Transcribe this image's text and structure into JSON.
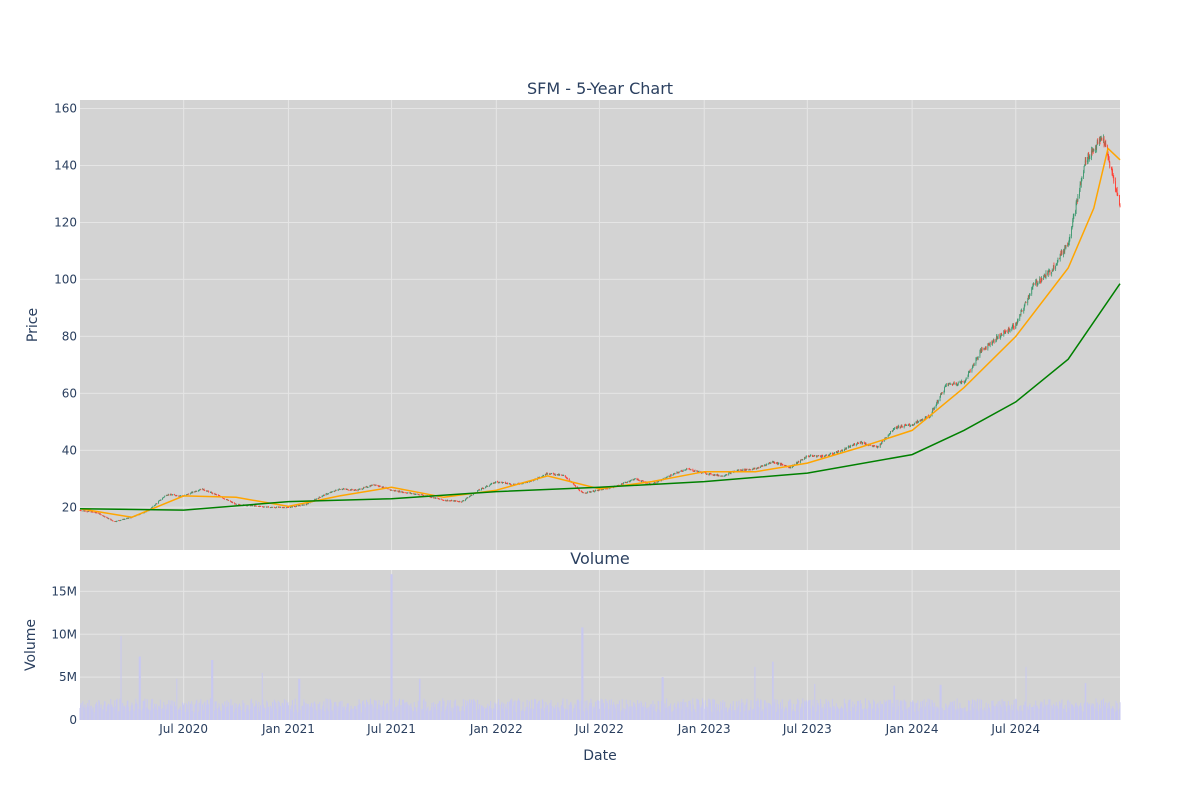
{
  "chart_data": [
    {
      "type": "candlestick",
      "title": "SFM - 5-Year Chart",
      "xlabel": "",
      "ylabel": "Price",
      "ylim": [
        5,
        163
      ],
      "xlim": [
        "2020-01-01",
        "2024-12-31"
      ],
      "x_ticks": [
        "Jul 2020",
        "Jan 2021",
        "Jul 2021",
        "Jan 2022",
        "Jul 2022",
        "Jan 2023",
        "Jul 2023",
        "Jan 2024",
        "Jul 2024"
      ],
      "y_ticks": [
        20,
        40,
        60,
        80,
        100,
        120,
        140,
        160
      ],
      "grid": true,
      "colors": {
        "up": "#3d9970",
        "down": "#ff4136",
        "ma_short": "#ffa500",
        "ma_long": "#008000",
        "plot_bg": "#d3d3d3",
        "grid": "#e5e5e5"
      },
      "series": [
        {
          "kind": "close_approx",
          "points": [
            [
              "2020-01-01",
              19
            ],
            [
              "2020-02-01",
              18
            ],
            [
              "2020-03-01",
              15
            ],
            [
              "2020-04-01",
              16.5
            ],
            [
              "2020-05-01",
              19
            ],
            [
              "2020-06-01",
              24.5
            ],
            [
              "2020-07-01",
              24
            ],
            [
              "2020-08-01",
              26.5
            ],
            [
              "2020-09-01",
              24
            ],
            [
              "2020-10-01",
              21
            ],
            [
              "2020-11-01",
              20.5
            ],
            [
              "2020-12-01",
              20
            ],
            [
              "2021-01-01",
              20
            ],
            [
              "2021-02-01",
              21
            ],
            [
              "2021-03-01",
              24
            ],
            [
              "2021-04-01",
              26.5
            ],
            [
              "2021-05-01",
              26
            ],
            [
              "2021-06-01",
              28
            ],
            [
              "2021-07-01",
              26
            ],
            [
              "2021-08-01",
              25
            ],
            [
              "2021-09-01",
              24
            ],
            [
              "2021-10-01",
              22.5
            ],
            [
              "2021-11-01",
              22
            ],
            [
              "2021-12-01",
              26
            ],
            [
              "2022-01-01",
              29
            ],
            [
              "2022-02-01",
              28
            ],
            [
              "2022-03-01",
              29
            ],
            [
              "2022-04-01",
              32
            ],
            [
              "2022-05-01",
              31
            ],
            [
              "2022-06-01",
              25
            ],
            [
              "2022-07-01",
              26
            ],
            [
              "2022-08-01",
              27.5
            ],
            [
              "2022-09-01",
              30
            ],
            [
              "2022-10-01",
              28
            ],
            [
              "2022-11-01",
              31
            ],
            [
              "2022-12-01",
              33.5
            ],
            [
              "2023-01-01",
              32
            ],
            [
              "2023-02-01",
              31
            ],
            [
              "2023-03-01",
              33
            ],
            [
              "2023-04-01",
              33.5
            ],
            [
              "2023-05-01",
              36
            ],
            [
              "2023-06-01",
              34
            ],
            [
              "2023-07-01",
              38
            ],
            [
              "2023-08-01",
              38
            ],
            [
              "2023-09-01",
              40
            ],
            [
              "2023-10-01",
              43
            ],
            [
              "2023-11-01",
              41
            ],
            [
              "2023-12-01",
              48
            ],
            [
              "2024-01-01",
              49
            ],
            [
              "2024-02-01",
              52
            ],
            [
              "2024-03-01",
              63
            ],
            [
              "2024-04-01",
              64
            ],
            [
              "2024-05-01",
              75
            ],
            [
              "2024-06-01",
              80
            ],
            [
              "2024-07-01",
              84
            ],
            [
              "2024-08-01",
              98
            ],
            [
              "2024-09-01",
              103
            ],
            [
              "2024-10-01",
              113
            ],
            [
              "2024-11-01",
              142
            ],
            [
              "2024-12-01",
              150
            ],
            [
              "2024-12-31",
              126
            ]
          ]
        },
        {
          "kind": "moving_average_short",
          "points": [
            [
              "2020-01-01",
              19.5
            ],
            [
              "2020-04-01",
              16.5
            ],
            [
              "2020-07-01",
              24
            ],
            [
              "2020-10-01",
              23.5
            ],
            [
              "2021-01-01",
              20.3
            ],
            [
              "2021-04-01",
              24
            ],
            [
              "2021-07-01",
              27
            ],
            [
              "2021-10-01",
              23.5
            ],
            [
              "2022-01-01",
              26
            ],
            [
              "2022-04-01",
              31
            ],
            [
              "2022-07-01",
              26.5
            ],
            [
              "2022-10-01",
              29
            ],
            [
              "2023-01-01",
              32.5
            ],
            [
              "2023-04-01",
              32.5
            ],
            [
              "2023-07-01",
              35.5
            ],
            [
              "2023-10-01",
              41
            ],
            [
              "2024-01-01",
              47
            ],
            [
              "2024-04-01",
              62
            ],
            [
              "2024-07-01",
              80
            ],
            [
              "2024-10-01",
              104
            ],
            [
              "2024-11-15",
              125
            ],
            [
              "2024-12-10",
              146
            ],
            [
              "2024-12-31",
              142
            ]
          ]
        },
        {
          "kind": "moving_average_long",
          "points": [
            [
              "2020-01-01",
              19.5
            ],
            [
              "2020-07-01",
              19
            ],
            [
              "2021-01-01",
              22
            ],
            [
              "2021-07-01",
              23
            ],
            [
              "2022-01-01",
              25.5
            ],
            [
              "2022-07-01",
              27
            ],
            [
              "2023-01-01",
              29
            ],
            [
              "2023-07-01",
              32
            ],
            [
              "2024-01-01",
              38.5
            ],
            [
              "2024-04-01",
              47
            ],
            [
              "2024-07-01",
              57
            ],
            [
              "2024-10-01",
              72
            ],
            [
              "2024-12-31",
              98.5
            ]
          ]
        }
      ]
    },
    {
      "type": "bar",
      "title": "Volume",
      "xlabel": "Date",
      "ylabel": "Volume",
      "ylim": [
        0,
        17500000
      ],
      "y_ticks": [
        0,
        5000000,
        10000000,
        15000000
      ],
      "y_tick_labels": [
        "0",
        "5M",
        "10M",
        "15M"
      ],
      "x_ticks": [
        "Jul 2020",
        "Jan 2021",
        "Jul 2021",
        "Jan 2022",
        "Jul 2022",
        "Jan 2023",
        "Jul 2023",
        "Jan 2024",
        "Jul 2024"
      ],
      "bar_color": "#c8c8f0",
      "baseline_approx": 1800000,
      "spikes": [
        [
          "2020-03-14",
          9800000
        ],
        [
          "2020-04-15",
          7400000
        ],
        [
          "2020-06-20",
          4800000
        ],
        [
          "2020-08-20",
          7000000
        ],
        [
          "2020-11-15",
          5500000
        ],
        [
          "2021-01-20",
          4800000
        ],
        [
          "2021-07-01",
          17000000
        ],
        [
          "2021-08-20",
          4800000
        ],
        [
          "2022-06-01",
          10800000
        ],
        [
          "2022-10-20",
          5000000
        ],
        [
          "2023-04-01",
          6200000
        ],
        [
          "2023-05-01",
          6800000
        ],
        [
          "2023-07-15",
          4200000
        ],
        [
          "2023-12-01",
          4000000
        ],
        [
          "2024-02-20",
          4100000
        ],
        [
          "2024-07-20",
          6200000
        ],
        [
          "2024-11-01",
          4300000
        ]
      ]
    }
  ]
}
